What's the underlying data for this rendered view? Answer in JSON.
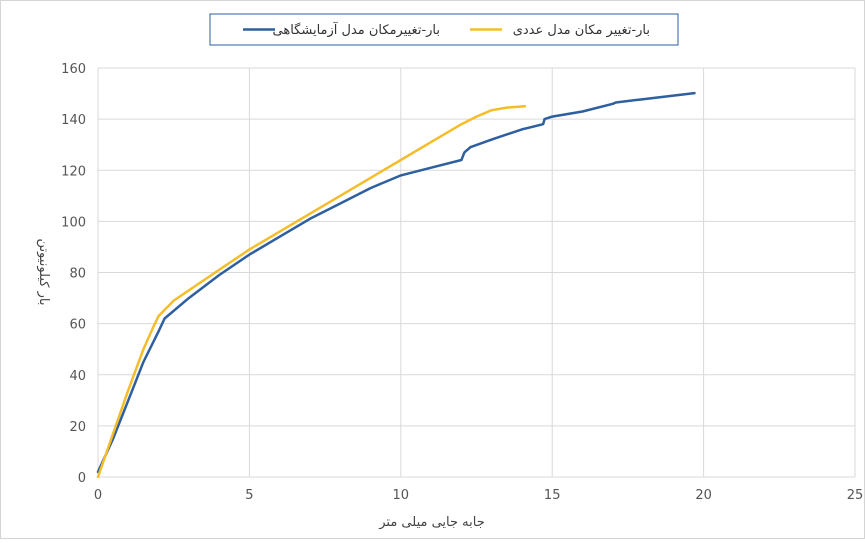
{
  "chart_data": {
    "type": "line",
    "xlabel": "جابه جایی میلی متر",
    "ylabel": "بار کیلونیوتن",
    "xlim": [
      0,
      25
    ],
    "ylim": [
      0,
      160
    ],
    "xticks": [
      0,
      5,
      10,
      15,
      20,
      25
    ],
    "yticks": [
      0,
      20,
      40,
      60,
      80,
      100,
      120,
      140,
      160
    ],
    "grid": true,
    "legend_position": "top-center",
    "series": [
      {
        "name": "بار-تغییرمکان مدل آزمایشگاهی",
        "color": "#2e5f9e",
        "x": [
          0,
          0.5,
          1.0,
          1.5,
          2.0,
          2.2,
          3,
          4,
          5,
          6,
          7,
          8,
          9,
          10,
          11,
          12.0,
          12.1,
          12.3,
          13,
          14,
          14.7,
          14.75,
          15.0,
          16,
          17,
          17.1,
          18,
          19,
          19.7
        ],
        "y": [
          2,
          15,
          30,
          45,
          57,
          62,
          70,
          79,
          87,
          94,
          101,
          107,
          113,
          118,
          121,
          124,
          127,
          129,
          132,
          136,
          138,
          140,
          141,
          143,
          146,
          146.5,
          147.8,
          149.2,
          150.2
        ]
      },
      {
        "name": "بار-تغییر مکان مدل عددی",
        "color": "#f5bd2a",
        "x": [
          0,
          0.5,
          1.0,
          1.5,
          1.8,
          2.0,
          2.5,
          3,
          4,
          5,
          6,
          7,
          8,
          9,
          10,
          11,
          12,
          12.5,
          13,
          13.5,
          14.1
        ],
        "y": [
          0,
          17,
          34,
          50,
          58,
          63,
          69,
          73,
          81,
          89,
          96,
          103,
          110,
          117,
          124,
          131,
          138,
          141,
          143.5,
          144.5,
          145
        ]
      }
    ]
  }
}
